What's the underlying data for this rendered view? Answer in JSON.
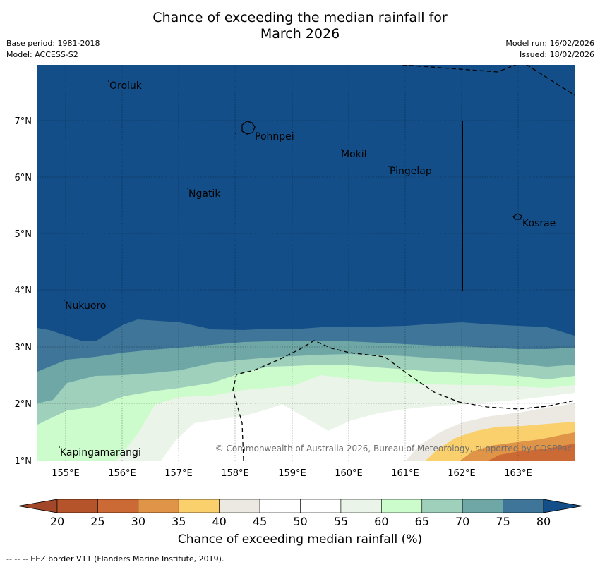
{
  "header": {
    "title_line1": "Chance of exceeding the median rainfall for",
    "title_line2": "March 2026",
    "base_period": "Base period: 1981-2018",
    "model": "Model: ACCESS-S2",
    "model_run": "Model run: 16/02/2026",
    "issued": "Issued: 18/02/2026"
  },
  "map": {
    "lon_ticks": [
      "155°E",
      "156°E",
      "157°E",
      "158°E",
      "159°E",
      "160°E",
      "161°E",
      "162°E",
      "163°E"
    ],
    "lat_ticks": [
      "7°N",
      "6°N",
      "5°N",
      "4°N",
      "3°N",
      "2°N",
      "1°N"
    ],
    "places": [
      "Oroluk",
      "Pohnpei",
      "Mokil",
      "Pingelap",
      "Ngatik",
      "Kosrae",
      "Nukuoro",
      "Kapingamarangi"
    ],
    "copyright": "© Commonwealth of Australia 2026, Bureau of Meteorology, supported by COSPPac"
  },
  "colorbar": {
    "ticks": [
      "20",
      "25",
      "30",
      "35",
      "40",
      "45",
      "50",
      "55",
      "60",
      "65",
      "70",
      "75",
      "80"
    ],
    "colors": [
      "#b5532a",
      "#cc6a35",
      "#e09447",
      "#f9d06b",
      "#ece9e2",
      "#ffffff",
      "#ffffff",
      "#eaf4e8",
      "#ccfccc",
      "#9ed0bb",
      "#6ea7a6",
      "#3e7599"
    ],
    "low_color": "#a2472a",
    "high_color": "#134e88",
    "label": "Chance of exceeding median rainfall (%)"
  },
  "footnote": "--  --  -- EEZ border V11 (Flanders Marine Institute, 2019)."
}
